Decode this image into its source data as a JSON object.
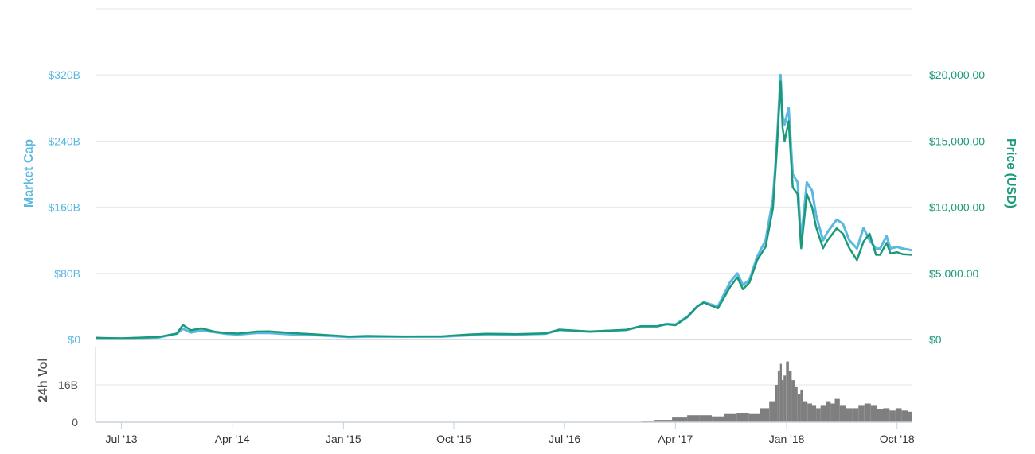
{
  "chart_data": {
    "type": "line",
    "colors": {
      "market_cap": "#5bb8e0",
      "price": "#1a9a7a",
      "volume": "#7f7f7f",
      "grid": "#e6e6e6"
    },
    "grid": true,
    "axes": {
      "left": {
        "title": "Market Cap",
        "ticks": [
          "$0",
          "$80B",
          "$160B",
          "$240B",
          "$320B"
        ],
        "range": [
          0,
          400
        ]
      },
      "right": {
        "title": "Price (USD)",
        "ticks": [
          "$0",
          "$5,000.00",
          "$10,000.00",
          "$15,000.00",
          "$20,000.00"
        ],
        "range": [
          0,
          25000
        ]
      },
      "volume": {
        "title": "24h Vol",
        "ticks": [
          "0",
          "16B"
        ],
        "range": [
          0,
          32
        ]
      },
      "x": {
        "range": [
          "2013-04-28",
          "2018-11-06"
        ],
        "ticks": [
          {
            "label": "Jul '13",
            "date": "2013-07-01"
          },
          {
            "label": "Apr '14",
            "date": "2014-04-01"
          },
          {
            "label": "Jan '15",
            "date": "2015-01-01"
          },
          {
            "label": "Oct '15",
            "date": "2015-10-01"
          },
          {
            "label": "Jul '16",
            "date": "2016-07-01"
          },
          {
            "label": "Apr '17",
            "date": "2017-04-01"
          },
          {
            "label": "Jan '18",
            "date": "2018-01-01"
          },
          {
            "label": "Oct '18",
            "date": "2018-10-01"
          }
        ]
      }
    },
    "series": [
      {
        "name": "Market Cap",
        "axis": "left",
        "units": "USD billions",
        "x": [
          "2013-04-28",
          "2013-07-01",
          "2013-10-01",
          "2013-11-15",
          "2013-11-30",
          "2013-12-20",
          "2014-01-15",
          "2014-02-15",
          "2014-03-15",
          "2014-04-15",
          "2014-06-01",
          "2014-07-01",
          "2014-09-01",
          "2014-11-01",
          "2015-01-15",
          "2015-03-01",
          "2015-06-01",
          "2015-09-01",
          "2015-11-05",
          "2015-12-20",
          "2016-03-01",
          "2016-05-15",
          "2016-06-18",
          "2016-09-01",
          "2016-12-01",
          "2017-01-05",
          "2017-02-15",
          "2017-03-10",
          "2017-04-01",
          "2017-05-01",
          "2017-05-25",
          "2017-06-10",
          "2017-07-15",
          "2017-08-15",
          "2017-09-01",
          "2017-09-15",
          "2017-10-01",
          "2017-10-20",
          "2017-11-10",
          "2017-11-28",
          "2017-12-07",
          "2017-12-17",
          "2017-12-22",
          "2017-12-27",
          "2018-01-06",
          "2018-01-16",
          "2018-01-28",
          "2018-02-06",
          "2018-02-20",
          "2018-03-05",
          "2018-03-15",
          "2018-04-01",
          "2018-04-12",
          "2018-05-05",
          "2018-05-20",
          "2018-06-05",
          "2018-06-24",
          "2018-07-10",
          "2018-07-25",
          "2018-08-10",
          "2018-08-20",
          "2018-09-05",
          "2018-09-15",
          "2018-10-01",
          "2018-10-15",
          "2018-11-06"
        ],
        "values": [
          1.5,
          1.1,
          2.5,
          7,
          13,
          8.5,
          11,
          9,
          7,
          6,
          8,
          8,
          6,
          5,
          3,
          3.5,
          3.5,
          3.5,
          5,
          6.5,
          6,
          7,
          11.5,
          9.5,
          11.5,
          16,
          16,
          19,
          18,
          28,
          40,
          45,
          40,
          70,
          80,
          66,
          72,
          100,
          120,
          170,
          230,
          320,
          270,
          260,
          280,
          200,
          190,
          120,
          190,
          180,
          150,
          120,
          130,
          145,
          140,
          120,
          110,
          135,
          120,
          110,
          110,
          125,
          110,
          112,
          110,
          108
        ]
      },
      {
        "name": "Price (USD)",
        "axis": "right",
        "units": "USD",
        "x": [
          "2013-04-28",
          "2013-07-01",
          "2013-10-01",
          "2013-11-15",
          "2013-11-30",
          "2013-12-20",
          "2014-01-15",
          "2014-02-15",
          "2014-03-15",
          "2014-04-15",
          "2014-06-01",
          "2014-07-01",
          "2014-09-01",
          "2014-11-01",
          "2015-01-15",
          "2015-03-01",
          "2015-06-01",
          "2015-09-01",
          "2015-11-05",
          "2015-12-20",
          "2016-03-01",
          "2016-05-15",
          "2016-06-18",
          "2016-09-01",
          "2016-12-01",
          "2017-01-05",
          "2017-02-15",
          "2017-03-10",
          "2017-04-01",
          "2017-05-01",
          "2017-05-25",
          "2017-06-10",
          "2017-07-15",
          "2017-08-15",
          "2017-09-01",
          "2017-09-15",
          "2017-10-01",
          "2017-10-20",
          "2017-11-10",
          "2017-11-28",
          "2017-12-07",
          "2017-12-17",
          "2017-12-22",
          "2017-12-27",
          "2018-01-06",
          "2018-01-16",
          "2018-01-28",
          "2018-02-06",
          "2018-02-20",
          "2018-03-05",
          "2018-03-15",
          "2018-04-01",
          "2018-04-12",
          "2018-05-05",
          "2018-05-20",
          "2018-06-05",
          "2018-06-24",
          "2018-07-10",
          "2018-07-25",
          "2018-08-10",
          "2018-08-20",
          "2018-09-05",
          "2018-09-15",
          "2018-10-01",
          "2018-10-15",
          "2018-11-06"
        ],
        "values": [
          135,
          90,
          190,
          450,
          1100,
          700,
          850,
          600,
          500,
          450,
          600,
          620,
          480,
          380,
          220,
          270,
          230,
          240,
          380,
          440,
          410,
          460,
          750,
          600,
          740,
          1000,
          1000,
          1150,
          1080,
          1700,
          2500,
          2800,
          2350,
          4000,
          4700,
          3800,
          4300,
          6000,
          7000,
          9900,
          14000,
          19500,
          16000,
          15000,
          16500,
          11500,
          11000,
          6900,
          11000,
          10000,
          8500,
          6900,
          7500,
          8400,
          8000,
          6900,
          6000,
          7400,
          8000,
          6400,
          6400,
          7300,
          6500,
          6600,
          6450,
          6400
        ]
      },
      {
        "name": "24h Vol",
        "axis": "volume",
        "units": "USD billions",
        "type": "bar",
        "x": [
          "2017-01-15",
          "2017-03-01",
          "2017-04-15",
          "2017-05-15",
          "2017-06-15",
          "2017-07-15",
          "2017-08-15",
          "2017-09-15",
          "2017-10-15",
          "2017-11-10",
          "2017-11-28",
          "2017-12-07",
          "2017-12-13",
          "2017-12-18",
          "2017-12-22",
          "2017-12-27",
          "2018-01-03",
          "2018-01-10",
          "2018-01-17",
          "2018-01-24",
          "2018-02-01",
          "2018-02-07",
          "2018-02-15",
          "2018-02-28",
          "2018-03-10",
          "2018-03-20",
          "2018-04-01",
          "2018-04-15",
          "2018-04-25",
          "2018-05-05",
          "2018-05-20",
          "2018-06-05",
          "2018-06-20",
          "2018-07-05",
          "2018-07-20",
          "2018-08-05",
          "2018-08-20",
          "2018-09-05",
          "2018-09-20",
          "2018-10-05",
          "2018-10-20",
          "2018-11-06"
        ],
        "values": [
          0.5,
          1,
          2,
          3,
          3,
          2.5,
          3.5,
          4,
          3.5,
          6,
          9,
          16,
          22,
          25,
          18,
          20,
          26,
          22,
          18,
          15,
          12,
          14,
          9,
          8,
          7,
          6,
          7,
          9,
          8,
          10,
          7,
          6,
          6,
          7,
          8,
          7,
          5.5,
          6,
          5,
          6,
          5,
          4.5
        ]
      }
    ]
  }
}
